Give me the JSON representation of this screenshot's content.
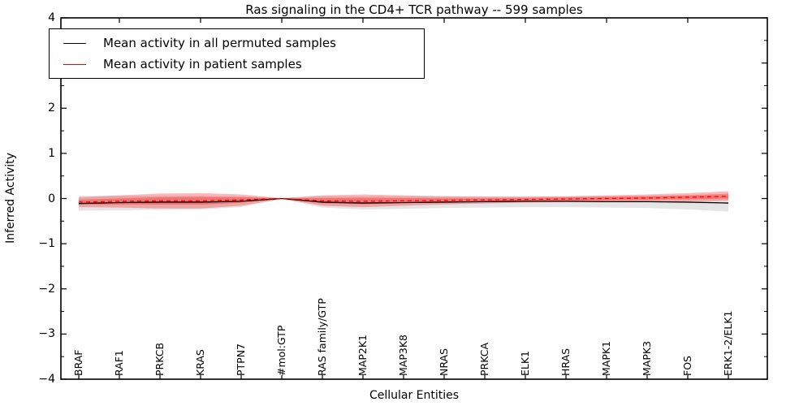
{
  "title": "Ras signaling in the CD4+ TCR pathway -- 599 samples",
  "chart_data": {
    "type": "line",
    "title": "Ras signaling in the CD4+ TCR pathway -- 599 samples",
    "xlabel": "Cellular Entities",
    "ylabel": "Inferred Activity",
    "ylim": [
      -4,
      4
    ],
    "grid": false,
    "legend_position": "upper left",
    "y_tick_values": [
      4,
      3,
      2,
      1,
      0,
      -1,
      -2,
      -3,
      -4
    ],
    "y_tick_labels": [
      "4",
      "3",
      "2",
      "1",
      "0",
      "−1",
      "−2",
      "−3",
      "−4"
    ],
    "categories": [
      "BRAF",
      "RAF1",
      "PRKCB",
      "KRAS",
      "PTPN7",
      "#mol:GTP",
      "RAS family/GTP",
      "MAP2K1",
      "MAP3K8",
      "NRAS",
      "PRKCA",
      "ELK1",
      "HRAS",
      "MAPK1",
      "MAPK3",
      "FOS",
      "ERK1-2/ELK1"
    ],
    "series": [
      {
        "name": "Mean activity in all permuted samples",
        "color": "#000000",
        "style": "solid",
        "values": [
          -0.11,
          -0.09,
          -0.08,
          -0.08,
          -0.06,
          0.0,
          -0.08,
          -0.1,
          -0.09,
          -0.08,
          -0.07,
          -0.06,
          -0.06,
          -0.07,
          -0.07,
          -0.08,
          -0.1
        ]
      },
      {
        "name": "Mean activity in patient samples",
        "color": "#ff0000",
        "style": "dashed",
        "values": [
          -0.08,
          -0.06,
          -0.05,
          -0.05,
          -0.03,
          0.0,
          -0.05,
          -0.06,
          -0.05,
          -0.04,
          -0.03,
          -0.02,
          -0.01,
          0.0,
          0.01,
          0.03,
          0.05
        ]
      }
    ],
    "bands": [
      {
        "name": "permuted-samples-std-band",
        "color": "#000000",
        "opacity": 0.1,
        "upper": [
          0.06,
          0.06,
          0.06,
          0.06,
          0.05,
          0.01,
          0.05,
          0.05,
          0.05,
          0.05,
          0.05,
          0.05,
          0.05,
          0.05,
          0.06,
          0.06,
          0.06
        ],
        "lower": [
          -0.27,
          -0.26,
          -0.25,
          -0.24,
          -0.19,
          -0.01,
          -0.2,
          -0.24,
          -0.23,
          -0.21,
          -0.2,
          -0.19,
          -0.19,
          -0.2,
          -0.21,
          -0.24,
          -0.29
        ]
      },
      {
        "name": "patient-samples-std-band",
        "color": "#ff0000",
        "opacity": 0.28,
        "upper": [
          0.03,
          0.07,
          0.11,
          0.12,
          0.09,
          0.01,
          0.07,
          0.09,
          0.07,
          0.05,
          0.04,
          0.04,
          0.05,
          0.07,
          0.09,
          0.12,
          0.16
        ],
        "lower": [
          -0.19,
          -0.2,
          -0.22,
          -0.22,
          -0.16,
          -0.01,
          -0.16,
          -0.19,
          -0.16,
          -0.13,
          -0.11,
          -0.09,
          -0.08,
          -0.07,
          -0.06,
          -0.06,
          -0.05
        ]
      }
    ]
  }
}
